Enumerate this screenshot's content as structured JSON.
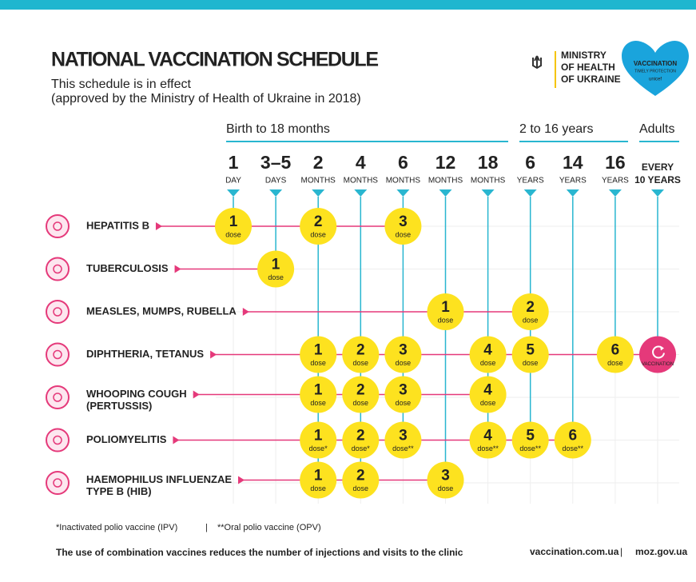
{
  "header": {
    "title": "NATIONAL VACCINATION SCHEDULE",
    "subtitle": [
      "This schedule is in effect",
      "(approved by the Ministry of Health of Ukraine in 2018)"
    ],
    "ministry": [
      "MINISTRY",
      "OF HEALTH",
      "OF UKRAINE"
    ],
    "badge": [
      "VACCINATION",
      "TIMELY PROTECTION",
      "unicef"
    ]
  },
  "groups": [
    "Birth to 18 months",
    "2 to 16 years",
    "Adults"
  ],
  "columns": [
    {
      "top": "1",
      "bottom": "DAY"
    },
    {
      "top": "3–5",
      "bottom": "DAYS"
    },
    {
      "top": "2",
      "bottom": "MONTHS"
    },
    {
      "top": "4",
      "bottom": "MONTHS"
    },
    {
      "top": "6",
      "bottom": "MONTHS"
    },
    {
      "top": "12",
      "bottom": "MONTHS"
    },
    {
      "top": "18",
      "bottom": "MONTHS"
    },
    {
      "top": "6",
      "bottom": "YEARS"
    },
    {
      "top": "14",
      "bottom": "YEARS"
    },
    {
      "top": "16",
      "bottom": "YEARS"
    },
    {
      "top": "EVERY",
      "bottom": "10 YEARS"
    }
  ],
  "vaccines": [
    {
      "name": [
        "HEPATITIS B"
      ],
      "doses": [
        {
          "number": "1",
          "text": "dose"
        },
        null,
        {
          "number": "2",
          "text": "dose"
        },
        null,
        {
          "number": "3",
          "text": "dose"
        },
        null,
        null,
        null,
        null,
        null,
        null
      ]
    },
    {
      "name": [
        "TUBERCULOSIS"
      ],
      "doses": [
        null,
        {
          "number": "1",
          "text": "dose"
        },
        null,
        null,
        null,
        null,
        null,
        null,
        null,
        null,
        null
      ]
    },
    {
      "name": [
        "MEASLES, MUMPS, RUBELLA"
      ],
      "doses": [
        null,
        null,
        null,
        null,
        null,
        {
          "number": "1",
          "text": "dose"
        },
        null,
        {
          "number": "2",
          "text": "dose"
        },
        null,
        null,
        null
      ]
    },
    {
      "name": [
        "DIPHTHERIA, TETANUS"
      ],
      "doses": [
        null,
        null,
        {
          "number": "1",
          "text": "dose"
        },
        {
          "number": "2",
          "text": "dose"
        },
        {
          "number": "3",
          "text": "dose"
        },
        null,
        {
          "number": "4",
          "text": "dose"
        },
        {
          "number": "5",
          "text": "dose"
        },
        null,
        {
          "number": "6",
          "text": "dose"
        },
        {
          "text": "VACCINATION"
        }
      ]
    },
    {
      "name": [
        "WHOOPING COUGH",
        "(PERTUSSIS)"
      ],
      "doses": [
        null,
        null,
        {
          "number": "1",
          "text": "dose"
        },
        {
          "number": "2",
          "text": "dose"
        },
        {
          "number": "3",
          "text": "dose"
        },
        null,
        {
          "number": "4",
          "text": "dose"
        },
        null,
        null,
        null,
        null
      ]
    },
    {
      "name": [
        "POLIOMYELITIS"
      ],
      "doses": [
        null,
        null,
        {
          "number": "1",
          "text": "dose*"
        },
        {
          "number": "2",
          "text": "dose*"
        },
        {
          "number": "3",
          "text": "dose**"
        },
        null,
        {
          "number": "4",
          "text": "dose**"
        },
        {
          "number": "5",
          "text": "dose**"
        },
        {
          "number": "6",
          "text": "dose**"
        },
        null,
        null
      ]
    },
    {
      "name": [
        "HAEMOPHILUS INFLUENZAE",
        "TYPE B (HIB)"
      ],
      "doses": [
        null,
        null,
        {
          "number": "1",
          "text": "dose"
        },
        {
          "number": "2",
          "text": "dose"
        },
        null,
        {
          "number": "3",
          "text": "dose"
        },
        null,
        null,
        null,
        null,
        null
      ]
    }
  ],
  "footnotes": [
    "*Inactivated polio vaccine (IPV)",
    "|",
    "**Oral polio vaccine (OPV)"
  ],
  "footer": {
    "note": "The use of combination vaccines reduces the number of injections and visits to the clinic",
    "links": [
      "vaccination.com.ua",
      "|",
      "moz.gov.ua"
    ]
  }
}
